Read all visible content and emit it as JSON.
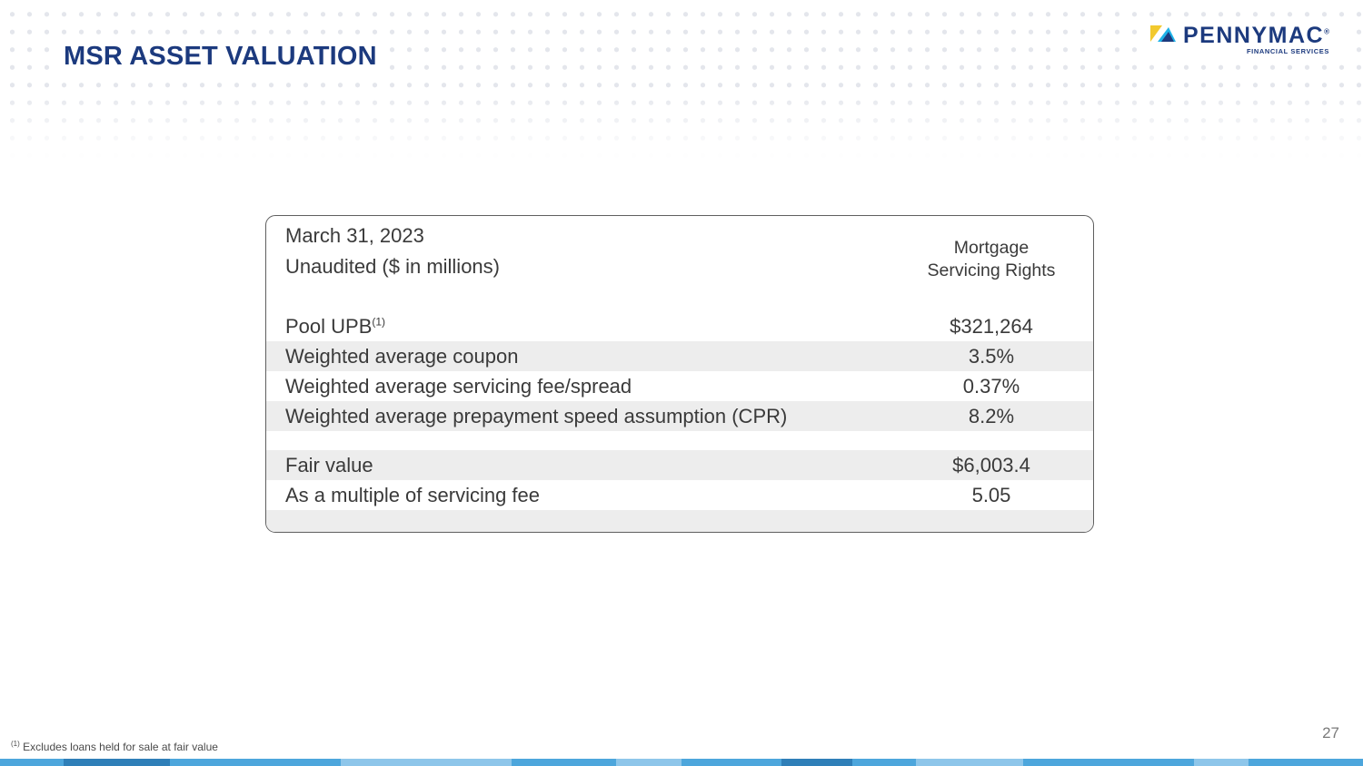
{
  "slide": {
    "title": "MSR ASSET VALUATION",
    "page_number": "27"
  },
  "logo": {
    "name": "PENNYMAC",
    "registered": "®",
    "subtitle": "FINANCIAL SERVICES",
    "colors": [
      "#f2c92e",
      "#1fb3e8",
      "#1c3a7e"
    ]
  },
  "table": {
    "date": "March 31, 2023",
    "unit": "Unaudited ($ in millions)",
    "column_header_line1": "Mortgage",
    "column_header_line2": "Servicing Rights",
    "rows": [
      {
        "label": "Pool UPB",
        "superscript": "(1)",
        "value": "$321,264"
      },
      {
        "label": "Weighted average coupon",
        "value": "3.5%"
      },
      {
        "label": "Weighted average servicing fee/spread",
        "value": "0.37%"
      },
      {
        "label": "Weighted average prepayment speed assumption (CPR)",
        "value": "8.2%"
      },
      {
        "label": "Fair value",
        "value": "$6,003.4"
      },
      {
        "label": "As a multiple of servicing fee",
        "value": "5.05"
      }
    ]
  },
  "footnote": {
    "marker": "(1)",
    "text": "Excludes loans held for sale at fair value"
  },
  "colors": {
    "title": "#1c3a7e",
    "row_shade": "#ededed",
    "bar_light": "#8ec6ea",
    "bar_mid": "#4da6dc",
    "bar_dark": "#2f7fb8"
  }
}
